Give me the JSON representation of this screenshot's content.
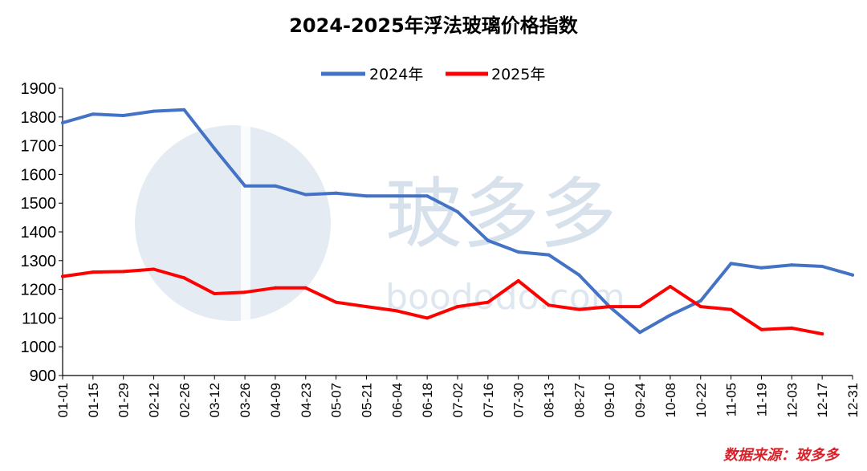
{
  "chart_data": {
    "type": "line",
    "title": "2024-2025年浮法玻璃价格指数",
    "ylim": [
      900,
      1900
    ],
    "yticks": [
      "900",
      "1000",
      "1100",
      "1200",
      "1300",
      "1400",
      "1500",
      "1600",
      "1700",
      "1800",
      "1900"
    ],
    "categories": [
      "01-01",
      "01-15",
      "01-29",
      "02-12",
      "02-26",
      "03-12",
      "03-26",
      "04-09",
      "04-23",
      "05-07",
      "05-21",
      "06-04",
      "06-18",
      "07-02",
      "07-16",
      "07-30",
      "08-13",
      "08-27",
      "09-10",
      "09-24",
      "10-08",
      "10-22",
      "11-05",
      "11-19",
      "12-03",
      "12-17",
      "12-31"
    ],
    "legend_position": "top-center",
    "grid": false,
    "series": [
      {
        "name": "2024年",
        "color": "#4472c4",
        "values": [
          1780,
          1810,
          1805,
          1820,
          1825,
          1690,
          1560,
          1560,
          1530,
          1535,
          1525,
          1525,
          1525,
          1470,
          1370,
          1330,
          1320,
          1250,
          1140,
          1050,
          1110,
          1160,
          1290,
          1275,
          1285,
          1280,
          1250
        ]
      },
      {
        "name": "2025年",
        "color": "#ff0000",
        "values": [
          1245,
          1260,
          1262,
          1270,
          1240,
          1185,
          1190,
          1205,
          1205,
          1155,
          1140,
          1125,
          1100,
          1140,
          1155,
          1230,
          1145,
          1130,
          1140,
          1140,
          1210,
          1140,
          1130,
          1060,
          1065,
          1045,
          null
        ]
      }
    ]
  },
  "legend": {
    "series1": "2024年",
    "series2": "2025年"
  },
  "source": "数据来源：玻多多",
  "watermark": {
    "text": "玻多多",
    "url": "boododo.com"
  }
}
